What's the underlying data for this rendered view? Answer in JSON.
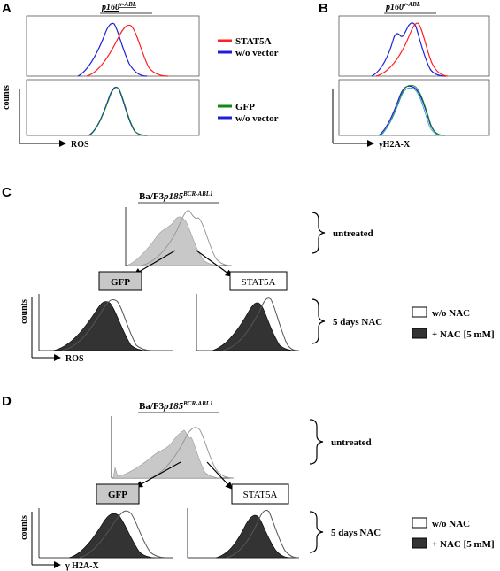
{
  "panels": {
    "A": {
      "letter": "A",
      "title_main": "p160",
      "title_sup": "v-ABL",
      "xlabel": "ROS",
      "ylabel": "counts",
      "top_legend": [
        {
          "label": "STAT5A",
          "color": "#ff2020"
        },
        {
          "label": "w/o vector",
          "color": "#1f1fd8"
        }
      ],
      "bottom_legend": [
        {
          "label": "GFP",
          "color": "#128a12"
        },
        {
          "label": "w/o vector",
          "color": "#1f1fd8"
        }
      ]
    },
    "B": {
      "letter": "B",
      "title_main": "p160",
      "title_sup": "v-ABL",
      "xlabel": "γH2A-X"
    },
    "C": {
      "letter": "C",
      "title_main": "Ba/F3",
      "title_italic": "p185",
      "title_sup": "BCR-ABL1",
      "box_left": "GFP",
      "box_right": "STAT5A",
      "brace_top": "untreated",
      "brace_bottom": "5 days NAC",
      "ylabel": "counts",
      "xlabel": "ROS",
      "legend": [
        {
          "label": "w/o NAC",
          "fill": "#ffffff"
        },
        {
          "label": "+ NAC [5 mM]",
          "fill": "#333333"
        }
      ]
    },
    "D": {
      "letter": "D",
      "title_main": "Ba/F3",
      "title_italic": "p185",
      "title_sup": "BCR-ABL1",
      "box_left": "GFP",
      "box_right": "STAT5A",
      "brace_top": "untreated",
      "brace_bottom": "5 days NAC",
      "ylabel": "counts",
      "xlabel": "γ H2A-X",
      "legend": [
        {
          "label": "w/o NAC",
          "fill": "#ffffff"
        },
        {
          "label": "+ NAC [5 mM]",
          "fill": "#333333"
        }
      ]
    }
  },
  "colors": {
    "stat5a": "#ff2020",
    "vector": "#1f1fd8",
    "gfp": "#128a12",
    "untreated_fill": "#c8c8c8",
    "nac_fill": "#333333"
  }
}
